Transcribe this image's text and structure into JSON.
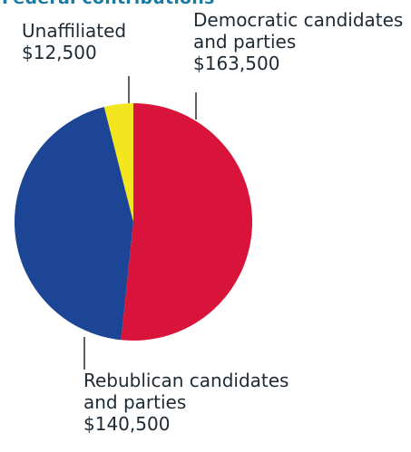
{
  "chart_data": {
    "type": "pie",
    "title": "Federal contributions",
    "slices": [
      {
        "label": "Democratic candidates and parties",
        "value": 163500,
        "value_label": "$163,500",
        "color": "#d9143a"
      },
      {
        "label": "Rebublican candidates and parties",
        "value": 140500,
        "value_label": "$140,500",
        "color": "#1c4595"
      },
      {
        "label": "Unaffiliated",
        "value": 12500,
        "value_label": "$12,500",
        "color": "#f4e61e"
      }
    ],
    "labels": {
      "unaffiliated": {
        "line1": "Unaffiliated",
        "value": "$12,500"
      },
      "democratic": {
        "line1": "Democratic candidates",
        "line2": "and parties",
        "value": "$163,500"
      },
      "republican": {
        "line1": "Rebublican candidates",
        "line2": "and parties",
        "value": "$140,500"
      }
    }
  }
}
